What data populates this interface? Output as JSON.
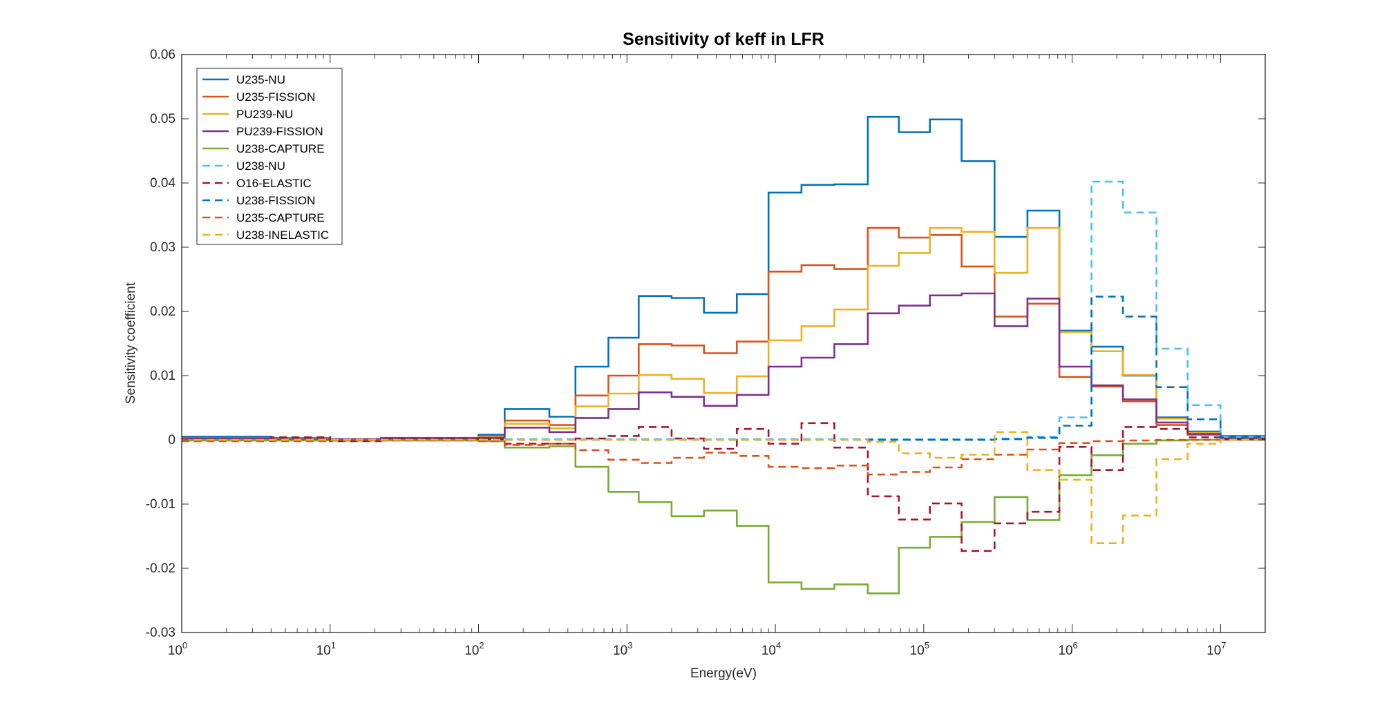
{
  "chart_data": {
    "type": "line",
    "title": "Sensitivity of keff in LFR",
    "xlabel": "Energy(eV)",
    "ylabel": "Sensitivity coefficient",
    "xscale": "log",
    "xlim": [
      1,
      20000000
    ],
    "ylim": [
      -0.03,
      0.06
    ],
    "grid": false,
    "legend_position": "top-left",
    "x_ticks": [
      {
        "value": 1,
        "base": "10",
        "exp": "0"
      },
      {
        "value": 10,
        "base": "10",
        "exp": "1"
      },
      {
        "value": 100,
        "base": "10",
        "exp": "2"
      },
      {
        "value": 1000,
        "base": "10",
        "exp": "3"
      },
      {
        "value": 10000,
        "base": "10",
        "exp": "4"
      },
      {
        "value": 100000,
        "base": "10",
        "exp": "5"
      },
      {
        "value": 1000000,
        "base": "10",
        "exp": "6"
      },
      {
        "value": 10000000,
        "base": "10",
        "exp": "7"
      }
    ],
    "y_ticks": [
      {
        "value": 0.06,
        "label": "0.06"
      },
      {
        "value": 0.05,
        "label": "0.05"
      },
      {
        "value": 0.04,
        "label": "0.04"
      },
      {
        "value": 0.03,
        "label": "0.03"
      },
      {
        "value": 0.02,
        "label": "0.02"
      },
      {
        "value": 0.01,
        "label": "0.01"
      },
      {
        "value": 0,
        "label": "0"
      },
      {
        "value": -0.01,
        "label": "-0.01"
      },
      {
        "value": -0.02,
        "label": "-0.02"
      },
      {
        "value": -0.03,
        "label": "-0.03"
      }
    ],
    "bin_edges": [
      1,
      4,
      10,
      22,
      100,
      150,
      300,
      450,
      750,
      1200,
      2000,
      3300,
      5500,
      9000,
      15000,
      25000,
      42000,
      68000,
      110000,
      180000,
      300000,
      500000,
      820000,
      1350000,
      2200000,
      3700000,
      6000000,
      10000000,
      20000000
    ],
    "series": [
      {
        "name": "U235-NU",
        "color": "#0072BD",
        "dash": "solid",
        "values": [
          0.0005,
          0.0003,
          0.0001,
          0.0003,
          0.0008,
          0.0048,
          0.0036,
          0.0114,
          0.0159,
          0.0224,
          0.0221,
          0.0198,
          0.0227,
          0.0385,
          0.0397,
          0.0398,
          0.0503,
          0.0479,
          0.0499,
          0.0434,
          0.0316,
          0.0357,
          0.017,
          0.0145,
          0.01,
          0.0035,
          0.0013,
          0.0006
        ]
      },
      {
        "name": "U235-FISSION",
        "color": "#D95319",
        "dash": "solid",
        "values": [
          0.0003,
          0.0002,
          0.0001,
          0.0002,
          0.0005,
          0.003,
          0.0023,
          0.0069,
          0.01,
          0.0149,
          0.0147,
          0.0135,
          0.0153,
          0.0262,
          0.0272,
          0.0266,
          0.033,
          0.0315,
          0.0319,
          0.027,
          0.0192,
          0.0212,
          0.0098,
          0.0083,
          0.006,
          0.0023,
          0.0008,
          0.0003
        ]
      },
      {
        "name": "PU239-NU",
        "color": "#EDB120",
        "dash": "solid",
        "values": [
          0.0002,
          0.0002,
          0.0001,
          0.0002,
          0.0004,
          0.0025,
          0.0018,
          0.0052,
          0.0072,
          0.0101,
          0.0095,
          0.0073,
          0.0099,
          0.0155,
          0.0177,
          0.0203,
          0.0271,
          0.0291,
          0.033,
          0.0324,
          0.026,
          0.033,
          0.0168,
          0.0138,
          0.0101,
          0.0033,
          0.0011,
          0.0004
        ]
      },
      {
        "name": "PU239-FISSION",
        "color": "#7E2F8E",
        "dash": "solid",
        "values": [
          0.0002,
          0.0001,
          0.0001,
          0.0002,
          0.0003,
          0.0019,
          0.0012,
          0.0034,
          0.0048,
          0.0074,
          0.0067,
          0.0053,
          0.007,
          0.0114,
          0.0128,
          0.0149,
          0.0197,
          0.0209,
          0.0225,
          0.0228,
          0.0177,
          0.022,
          0.0114,
          0.0085,
          0.0063,
          0.0027,
          0.0009,
          0.0003
        ]
      },
      {
        "name": "U238-CAPTURE",
        "color": "#77AC30",
        "dash": "solid",
        "values": [
          -0.0001,
          -0.0001,
          -0.0001,
          -0.0001,
          -0.0002,
          -0.0012,
          -0.001,
          -0.0042,
          -0.0081,
          -0.0097,
          -0.0119,
          -0.011,
          -0.0134,
          -0.0222,
          -0.0232,
          -0.0225,
          -0.0239,
          -0.0168,
          -0.0151,
          -0.0128,
          -0.0089,
          -0.0125,
          -0.0055,
          -0.0024,
          -0.0006,
          -0.0001,
          0.0,
          0.0
        ]
      },
      {
        "name": "U238-NU",
        "color": "#4DBEEE",
        "dash": "dashed",
        "values": [
          0.0,
          0.0,
          0.0,
          0.0,
          0.0,
          0.0001,
          0.0001,
          0.0001,
          0.0001,
          0.0001,
          0.0001,
          0.0001,
          0.0001,
          0.0001,
          0.0001,
          0.0001,
          0.0001,
          0.0001,
          0.0001,
          0.0001,
          0.0002,
          0.0005,
          0.0035,
          0.0402,
          0.0354,
          0.0142,
          0.0054,
          0.0005
        ]
      },
      {
        "name": "O16-ELASTIC",
        "color": "#A2142F",
        "dash": "dashed",
        "values": [
          0.0001,
          0.0004,
          -0.0002,
          0.0002,
          0.0001,
          -0.0006,
          -0.0006,
          0.0002,
          0.0006,
          0.002,
          0.0002,
          -0.0014,
          0.0017,
          -0.0006,
          0.0026,
          -0.0012,
          -0.0088,
          -0.0124,
          -0.0099,
          -0.0173,
          -0.013,
          -0.0112,
          -0.0011,
          -0.0047,
          0.002,
          0.0017,
          0.0004,
          0.0001
        ]
      },
      {
        "name": "U238-FISSION",
        "color": "#0072BD",
        "dash": "dashed",
        "values": [
          0.0,
          0.0,
          0.0,
          0.0,
          0.0,
          0.0,
          0.0,
          0.0,
          0.0,
          0.0,
          0.0,
          0.0,
          0.0,
          0.0,
          0.0,
          0.0,
          0.0,
          0.0,
          0.0,
          0.0,
          0.0001,
          0.0003,
          0.0022,
          0.0223,
          0.0192,
          0.0082,
          0.0032,
          0.0004
        ]
      },
      {
        "name": "U235-CAPTURE",
        "color": "#D95319",
        "dash": "dashed",
        "values": [
          -0.0002,
          -0.0002,
          -0.0001,
          -0.0001,
          -0.0002,
          -0.0008,
          -0.0006,
          -0.0016,
          -0.0031,
          -0.0036,
          -0.0028,
          -0.002,
          -0.0025,
          -0.0042,
          -0.0044,
          -0.004,
          -0.0054,
          -0.005,
          -0.0043,
          -0.003,
          -0.0023,
          -0.0015,
          -0.0005,
          -0.0002,
          -0.0001,
          0.0,
          0.0,
          0.0
        ]
      },
      {
        "name": "U238-INELASTIC",
        "color": "#EDB120",
        "dash": "dashed",
        "values": [
          0.0,
          0.0,
          0.0,
          0.0,
          0.0,
          0.0,
          0.0,
          0.0,
          0.0,
          0.0,
          0.0,
          0.0,
          0.0,
          0.0,
          0.0,
          0.0,
          -0.0003,
          -0.0021,
          -0.0028,
          -0.0023,
          0.0012,
          -0.0047,
          -0.0062,
          -0.0161,
          -0.0118,
          -0.003,
          -0.0006,
          0.0
        ]
      }
    ]
  }
}
